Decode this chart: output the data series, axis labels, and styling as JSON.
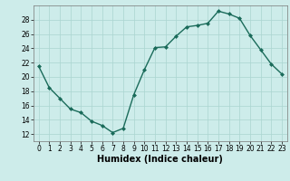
{
  "x": [
    0,
    1,
    2,
    3,
    4,
    5,
    6,
    7,
    8,
    9,
    10,
    11,
    12,
    13,
    14,
    15,
    16,
    17,
    18,
    19,
    20,
    21,
    22,
    23
  ],
  "y": [
    21.5,
    18.5,
    17.0,
    15.5,
    15.0,
    13.8,
    13.2,
    12.2,
    12.8,
    17.5,
    21.0,
    24.1,
    24.2,
    25.7,
    27.0,
    27.2,
    27.5,
    29.2,
    28.8,
    28.2,
    25.8,
    23.8,
    21.8,
    20.4
  ],
  "line_color": "#1a6b5a",
  "marker": "D",
  "marker_size": 2.0,
  "bg_color": "#cdecea",
  "grid_color": "#aad4d0",
  "xlabel": "Humidex (Indice chaleur)",
  "ylim": [
    11,
    30
  ],
  "xlim": [
    -0.5,
    23.5
  ],
  "yticks": [
    12,
    14,
    16,
    18,
    20,
    22,
    24,
    26,
    28
  ],
  "xticks": [
    0,
    1,
    2,
    3,
    4,
    5,
    6,
    7,
    8,
    9,
    10,
    11,
    12,
    13,
    14,
    15,
    16,
    17,
    18,
    19,
    20,
    21,
    22,
    23
  ],
  "tick_labelsize": 5.5,
  "xlabel_fontsize": 7.0,
  "linewidth": 1.0
}
